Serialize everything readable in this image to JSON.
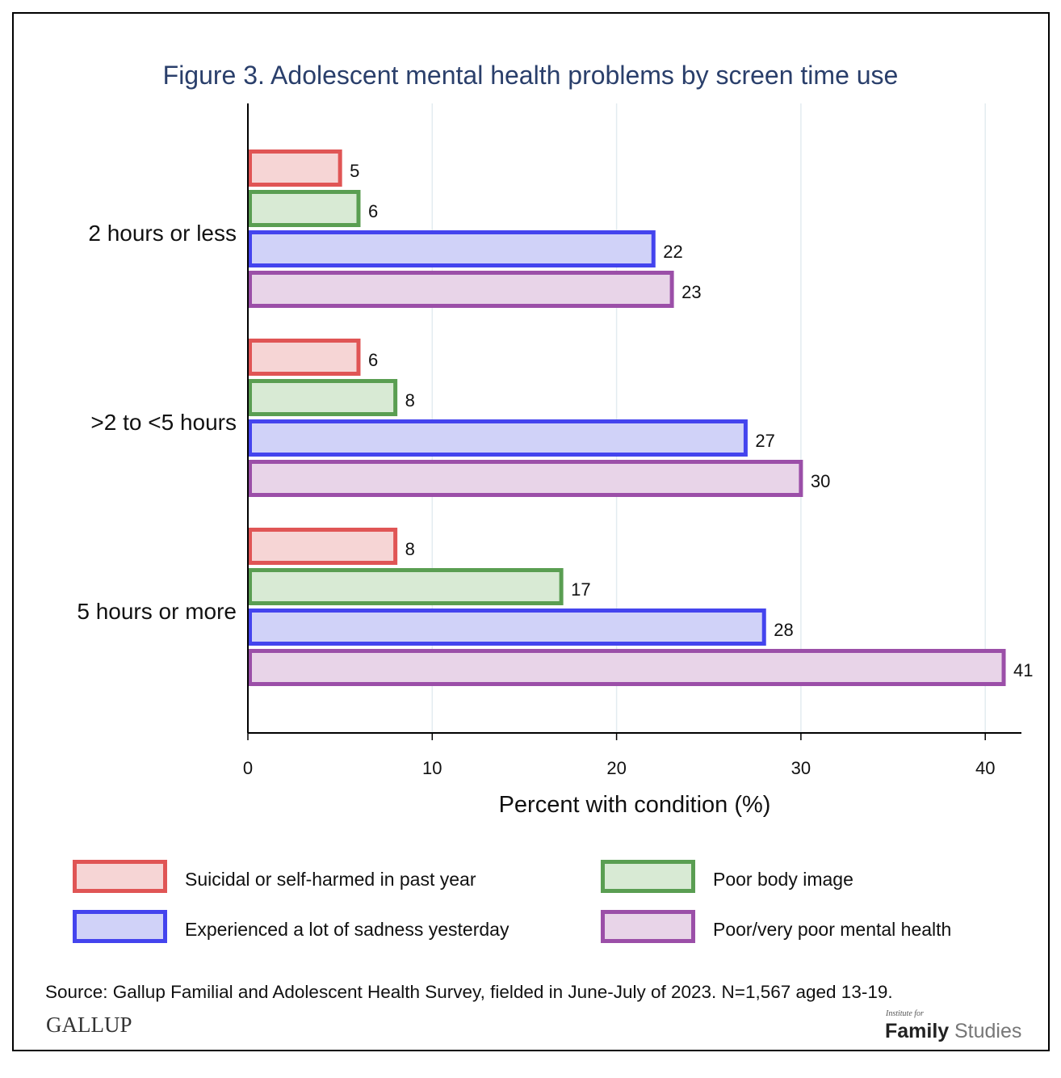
{
  "chart_data": {
    "type": "bar",
    "orientation": "horizontal",
    "title": "Figure 3. Adolescent mental health problems by screen time use",
    "xlabel": "Percent with condition (%)",
    "ylabel": "",
    "xlim": [
      0,
      42
    ],
    "xticks": [
      0,
      10,
      20,
      30,
      40
    ],
    "grid": true,
    "categories": [
      "2 hours or less",
      ">2 to <5 hours",
      "5 hours or more"
    ],
    "series": [
      {
        "name": "Suicidal or self-harmed in past year",
        "values": [
          5,
          6,
          8
        ],
        "stroke": "#e05555",
        "fill": "#f6d5d5"
      },
      {
        "name": "Poor body image",
        "values": [
          6,
          8,
          17
        ],
        "stroke": "#5a9e52",
        "fill": "#d8ead4"
      },
      {
        "name": "Experienced a lot of sadness yesterday",
        "values": [
          22,
          27,
          28
        ],
        "stroke": "#4444ee",
        "fill": "#d0d2f8"
      },
      {
        "name": "Poor/very poor mental health",
        "values": [
          23,
          30,
          41
        ],
        "stroke": "#9b4fa8",
        "fill": "#e8d4e8"
      }
    ],
    "legend_placement": "bottom",
    "source": "Source: Gallup Familial and Adolescent Health Survey, fielded in June-July of 2023. N=1,567 aged 13-19."
  },
  "logos": {
    "gallup": "GALLUP",
    "ifs_small": "Institute for",
    "ifs_family": "Family",
    "ifs_studies": "Studies"
  },
  "colors": {
    "title": "#2a3f6b"
  }
}
